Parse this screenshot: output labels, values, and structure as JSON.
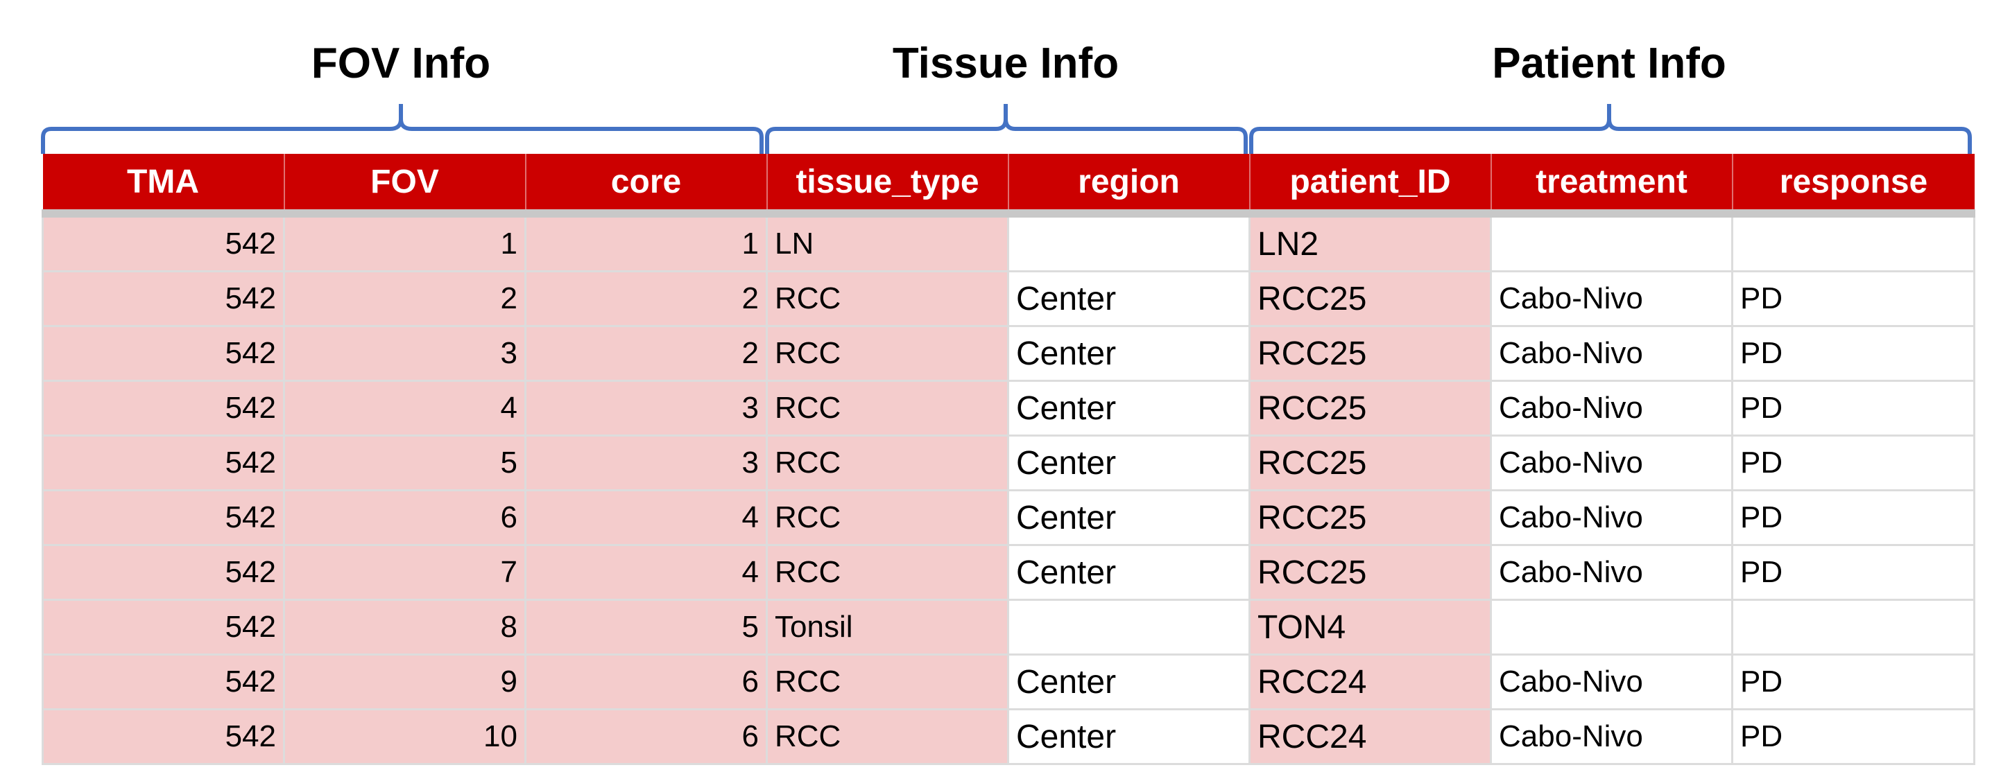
{
  "groups": {
    "fov_info": "FOV Info",
    "tissue_info": "Tissue Info",
    "patient_info": "Patient Info"
  },
  "colors": {
    "header_bg": "#cc0000",
    "header_text": "#ffffff",
    "highlight_cell": "#f4cccc",
    "bracket": "#4472c4"
  },
  "table": {
    "columns": [
      "TMA",
      "FOV",
      "core",
      "tissue_type",
      "region",
      "patient_ID",
      "treatment",
      "response"
    ],
    "rows": [
      [
        "542",
        "1",
        "1",
        "LN",
        "",
        "LN2",
        "",
        ""
      ],
      [
        "542",
        "2",
        "2",
        "RCC",
        "Center",
        "RCC25",
        "Cabo-Nivo",
        "PD"
      ],
      [
        "542",
        "3",
        "2",
        "RCC",
        "Center",
        "RCC25",
        "Cabo-Nivo",
        "PD"
      ],
      [
        "542",
        "4",
        "3",
        "RCC",
        "Center",
        "RCC25",
        "Cabo-Nivo",
        "PD"
      ],
      [
        "542",
        "5",
        "3",
        "RCC",
        "Center",
        "RCC25",
        "Cabo-Nivo",
        "PD"
      ],
      [
        "542",
        "6",
        "4",
        "RCC",
        "Center",
        "RCC25",
        "Cabo-Nivo",
        "PD"
      ],
      [
        "542",
        "7",
        "4",
        "RCC",
        "Center",
        "RCC25",
        "Cabo-Nivo",
        "PD"
      ],
      [
        "542",
        "8",
        "5",
        "Tonsil",
        "",
        "TON4",
        "",
        ""
      ],
      [
        "542",
        "9",
        "6",
        "RCC",
        "Center",
        "RCC24",
        "Cabo-Nivo",
        "PD"
      ],
      [
        "542",
        "10",
        "6",
        "RCC",
        "Center",
        "RCC24",
        "Cabo-Nivo",
        "PD"
      ]
    ]
  }
}
